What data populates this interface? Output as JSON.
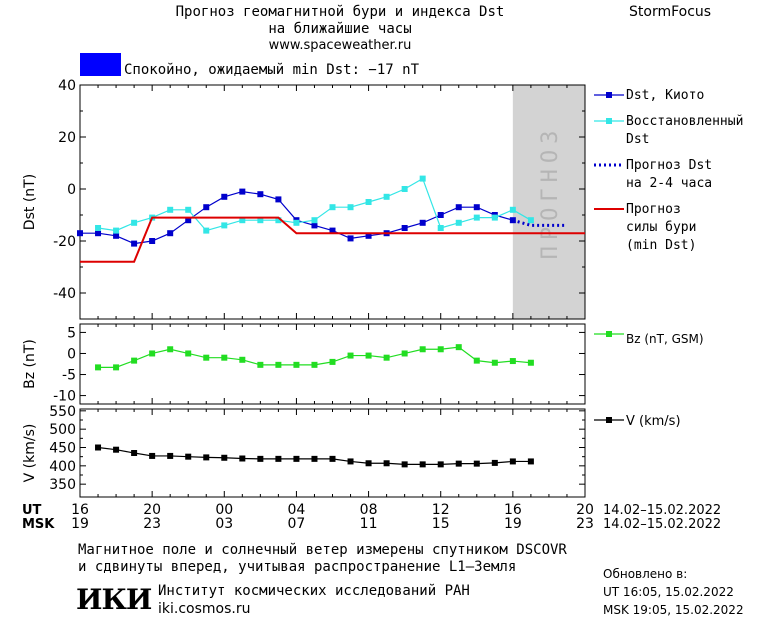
{
  "header": {
    "title_line1": "Прогноз геомагнитной бури и индекса Dst",
    "title_line2": "на ближайшие часы",
    "website": "www.spaceweather.ru",
    "brand": "StormFocus"
  },
  "status": {
    "text": "Спокойно, ожидаемый min Dst: −17 nT",
    "color": "#0000ff"
  },
  "colors": {
    "dst_kyoto": "#0000cc",
    "dst_reconstructed": "#33e6e6",
    "dst_forecast": "#0000cc",
    "storm_forecast": "#dd0000",
    "bz": "#22dd22",
    "v": "#000000",
    "forecast_zone": "#d3d3d3"
  },
  "chart_data": [
    {
      "type": "line",
      "panel": "dst",
      "ylabel": "Dst (nT)",
      "ylim": [
        -50,
        40
      ],
      "yticks": [
        40,
        20,
        0,
        -20,
        -40
      ],
      "xlim": [
        0,
        28
      ],
      "forecast_zone": [
        24,
        28
      ],
      "forecast_label": "ПРОГНОЗ",
      "legend_placement": "right",
      "series": [
        {
          "name": "Dst, Киото",
          "style": "line-square",
          "x": [
            0,
            1,
            2,
            3,
            4,
            5,
            6,
            7,
            8,
            9,
            10,
            11,
            12,
            13,
            14,
            15,
            16,
            17,
            18,
            19,
            20,
            21,
            22,
            23,
            24
          ],
          "y": [
            -17,
            -17,
            -18,
            -21,
            -20,
            -17,
            -12,
            -7,
            -3,
            -1,
            -2,
            -4,
            -12,
            -14,
            -16,
            -19,
            -18,
            -17,
            -15,
            -13,
            -10,
            -7,
            -7,
            -10,
            -12
          ]
        },
        {
          "name": "Восстановленный Dst",
          "style": "line-square",
          "x": [
            1,
            2,
            3,
            4,
            5,
            6,
            7,
            8,
            9,
            10,
            11,
            12,
            13,
            14,
            15,
            16,
            17,
            18,
            19,
            20,
            21,
            22,
            23,
            24,
            25
          ],
          "y": [
            -15,
            -16,
            -13,
            -11,
            -8,
            -8,
            -16,
            -14,
            -12,
            -12,
            -12,
            -13,
            -12,
            -7,
            -7,
            -5,
            -3,
            0,
            4,
            -15,
            -13,
            -11,
            -11,
            -8,
            -12
          ]
        },
        {
          "name": "Прогноз Dst на 2-4 часа",
          "style": "dotted",
          "x": [
            24,
            25,
            26,
            27
          ],
          "y": [
            -12,
            -14,
            -14,
            -14
          ]
        },
        {
          "name": "Прогноз силы бури (min Dst)",
          "style": "step",
          "x": [
            0,
            3,
            4,
            11,
            12,
            28
          ],
          "y": [
            -28,
            -28,
            -11,
            -11,
            -17,
            -17
          ]
        }
      ]
    },
    {
      "type": "line",
      "panel": "bz",
      "ylabel": "Bz (nT)",
      "ylim": [
        -12,
        7
      ],
      "yticks": [
        5,
        0,
        -5,
        -10
      ],
      "xlim": [
        0,
        28
      ],
      "series": [
        {
          "name": "Bz (nT, GSM)",
          "style": "line-square",
          "x": [
            1,
            2,
            3,
            4,
            5,
            6,
            7,
            8,
            9,
            10,
            11,
            12,
            13,
            14,
            15,
            16,
            17,
            18,
            19,
            20,
            21,
            22,
            23,
            24,
            25
          ],
          "y": [
            -3.3,
            -3.3,
            -1.7,
            0,
            1,
            0,
            -1,
            -1,
            -1.5,
            -2.7,
            -2.7,
            -2.7,
            -2.7,
            -2,
            -0.5,
            -0.5,
            -1,
            0,
            1,
            1,
            1.5,
            -1.7,
            -2.2,
            -1.8,
            -2.2
          ]
        }
      ]
    },
    {
      "type": "line",
      "panel": "v",
      "ylabel": "V (km/s)",
      "ylim": [
        315,
        555
      ],
      "yticks": [
        550,
        500,
        450,
        400,
        350
      ],
      "yticks_minor": [
        525,
        475,
        425,
        375
      ],
      "xlim": [
        0,
        28
      ],
      "series": [
        {
          "name": "V (km/s)",
          "style": "line-square",
          "x": [
            1,
            2,
            3,
            4,
            5,
            6,
            7,
            8,
            9,
            10,
            11,
            12,
            13,
            14,
            15,
            16,
            17,
            18,
            19,
            20,
            21,
            22,
            23,
            24,
            25
          ],
          "y": [
            450,
            444,
            435,
            427,
            427,
            425,
            423,
            422,
            420,
            419,
            419,
            419,
            419,
            419,
            412,
            407,
            407,
            404,
            404,
            404,
            406,
            406,
            408,
            412,
            412
          ]
        }
      ]
    }
  ],
  "xaxis": {
    "ut_label": "UT",
    "msk_label": "MSK",
    "ut_ticks": [
      "16",
      "20",
      "00",
      "04",
      "08",
      "12",
      "16",
      "20"
    ],
    "msk_ticks": [
      "19",
      "23",
      "03",
      "07",
      "11",
      "15",
      "19",
      "23"
    ],
    "date_range": "14.02–15.02.2022"
  },
  "footer": {
    "note_line1": "Магнитное поле и солнечный ветер измерены спутником DSCOVR",
    "note_line2": "и сдвинуты вперед, учитывая распространение L1–Земля",
    "logo_text": "ИКИ",
    "institute": "Институт космических исследований РАН",
    "institute_site": "iki.cosmos.ru",
    "updated_title": "Обновлено в:",
    "updated_ut": "UT  16:05, 15.02.2022",
    "updated_msk": "MSK 19:05, 15.02.2022"
  }
}
